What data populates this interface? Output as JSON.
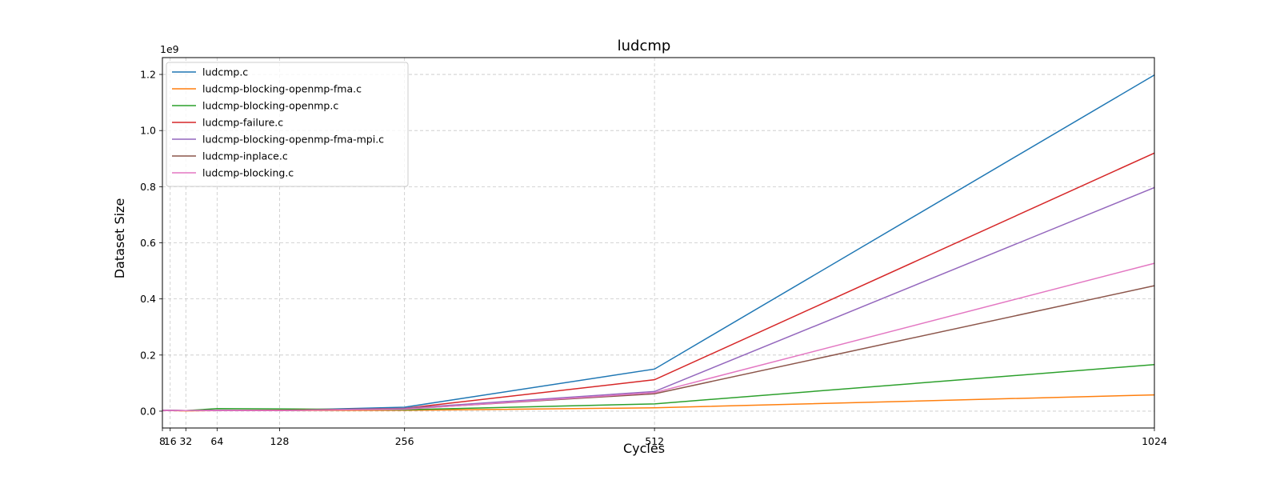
{
  "chart_data": {
    "type": "line",
    "title": "ludcmp",
    "xlabel": "Cycles",
    "ylabel": "Dataset Size",
    "y_offset_label": "1e9",
    "x": [
      8,
      16,
      32,
      64,
      128,
      256,
      512,
      1024
    ],
    "xticks": [
      8,
      16,
      32,
      64,
      128,
      256,
      512,
      1024
    ],
    "yticks": [
      0.0,
      0.2,
      0.4,
      0.6,
      0.8,
      1.0,
      1.2
    ],
    "ytick_labels": [
      "0.0",
      "0.2",
      "0.4",
      "0.6",
      "0.8",
      "1.0",
      "1.2"
    ],
    "xlim": [
      8,
      1024
    ],
    "ylim": [
      -0.06,
      1.26
    ],
    "y_scale": "1e9",
    "grid": true,
    "legend_position": "upper-left",
    "series": [
      {
        "name": "ludcmp.c",
        "color": "#1f77b4",
        "values": [
          0.003,
          0.003,
          0.002,
          0.003,
          0.003,
          0.014,
          0.15,
          1.198
        ]
      },
      {
        "name": "ludcmp-blocking-openmp-fma.c",
        "color": "#ff7f0e",
        "values": [
          0.002,
          0.002,
          0.001,
          0.002,
          0.002,
          0.003,
          0.012,
          0.058
        ]
      },
      {
        "name": "ludcmp-blocking-openmp.c",
        "color": "#2ca02c",
        "values": [
          0.002,
          0.002,
          0.002,
          0.009,
          0.008,
          0.005,
          0.026,
          0.166
        ]
      },
      {
        "name": "ludcmp-failure.c",
        "color": "#d62728",
        "values": [
          0.003,
          0.003,
          0.002,
          0.003,
          0.003,
          0.01,
          0.112,
          0.92
        ]
      },
      {
        "name": "ludcmp-blocking-openmp-fma-mpi.c",
        "color": "#9467bd",
        "values": [
          0.003,
          0.003,
          0.002,
          0.003,
          0.002,
          0.01,
          0.07,
          0.797
        ]
      },
      {
        "name": "ludcmp-inplace.c",
        "color": "#8c564b",
        "values": [
          0.002,
          0.002,
          0.002,
          0.002,
          0.002,
          0.008,
          0.062,
          0.447
        ]
      },
      {
        "name": "ludcmp-blocking.c",
        "color": "#e377c2",
        "values": [
          0.002,
          0.002,
          0.002,
          0.002,
          0.002,
          0.007,
          0.066,
          0.527
        ]
      }
    ]
  }
}
